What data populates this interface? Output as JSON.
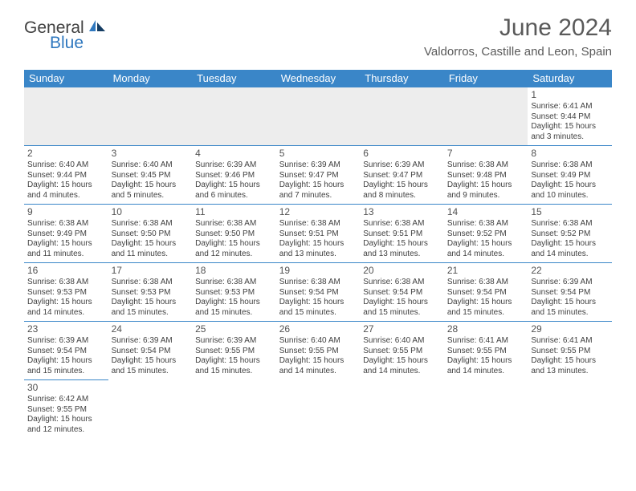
{
  "logo": {
    "text1": "General",
    "text2": "Blue"
  },
  "title": "June 2024",
  "location": "Valdorros, Castille and Leon, Spain",
  "colors": {
    "header_bg": "#3a86c8",
    "header_text": "#ffffff",
    "border": "#3a86c8",
    "blank_bg": "#ededed",
    "text": "#3f3f3f",
    "title_color": "#5a5a5a",
    "logo_blue": "#2f78bf"
  },
  "days_of_week": [
    "Sunday",
    "Monday",
    "Tuesday",
    "Wednesday",
    "Thursday",
    "Friday",
    "Saturday"
  ],
  "weeks": [
    [
      null,
      null,
      null,
      null,
      null,
      null,
      {
        "n": "1",
        "sr": "Sunrise: 6:41 AM",
        "ss": "Sunset: 9:44 PM",
        "d1": "Daylight: 15 hours",
        "d2": "and 3 minutes."
      }
    ],
    [
      {
        "n": "2",
        "sr": "Sunrise: 6:40 AM",
        "ss": "Sunset: 9:44 PM",
        "d1": "Daylight: 15 hours",
        "d2": "and 4 minutes."
      },
      {
        "n": "3",
        "sr": "Sunrise: 6:40 AM",
        "ss": "Sunset: 9:45 PM",
        "d1": "Daylight: 15 hours",
        "d2": "and 5 minutes."
      },
      {
        "n": "4",
        "sr": "Sunrise: 6:39 AM",
        "ss": "Sunset: 9:46 PM",
        "d1": "Daylight: 15 hours",
        "d2": "and 6 minutes."
      },
      {
        "n": "5",
        "sr": "Sunrise: 6:39 AM",
        "ss": "Sunset: 9:47 PM",
        "d1": "Daylight: 15 hours",
        "d2": "and 7 minutes."
      },
      {
        "n": "6",
        "sr": "Sunrise: 6:39 AM",
        "ss": "Sunset: 9:47 PM",
        "d1": "Daylight: 15 hours",
        "d2": "and 8 minutes."
      },
      {
        "n": "7",
        "sr": "Sunrise: 6:38 AM",
        "ss": "Sunset: 9:48 PM",
        "d1": "Daylight: 15 hours",
        "d2": "and 9 minutes."
      },
      {
        "n": "8",
        "sr": "Sunrise: 6:38 AM",
        "ss": "Sunset: 9:49 PM",
        "d1": "Daylight: 15 hours",
        "d2": "and 10 minutes."
      }
    ],
    [
      {
        "n": "9",
        "sr": "Sunrise: 6:38 AM",
        "ss": "Sunset: 9:49 PM",
        "d1": "Daylight: 15 hours",
        "d2": "and 11 minutes."
      },
      {
        "n": "10",
        "sr": "Sunrise: 6:38 AM",
        "ss": "Sunset: 9:50 PM",
        "d1": "Daylight: 15 hours",
        "d2": "and 11 minutes."
      },
      {
        "n": "11",
        "sr": "Sunrise: 6:38 AM",
        "ss": "Sunset: 9:50 PM",
        "d1": "Daylight: 15 hours",
        "d2": "and 12 minutes."
      },
      {
        "n": "12",
        "sr": "Sunrise: 6:38 AM",
        "ss": "Sunset: 9:51 PM",
        "d1": "Daylight: 15 hours",
        "d2": "and 13 minutes."
      },
      {
        "n": "13",
        "sr": "Sunrise: 6:38 AM",
        "ss": "Sunset: 9:51 PM",
        "d1": "Daylight: 15 hours",
        "d2": "and 13 minutes."
      },
      {
        "n": "14",
        "sr": "Sunrise: 6:38 AM",
        "ss": "Sunset: 9:52 PM",
        "d1": "Daylight: 15 hours",
        "d2": "and 14 minutes."
      },
      {
        "n": "15",
        "sr": "Sunrise: 6:38 AM",
        "ss": "Sunset: 9:52 PM",
        "d1": "Daylight: 15 hours",
        "d2": "and 14 minutes."
      }
    ],
    [
      {
        "n": "16",
        "sr": "Sunrise: 6:38 AM",
        "ss": "Sunset: 9:53 PM",
        "d1": "Daylight: 15 hours",
        "d2": "and 14 minutes."
      },
      {
        "n": "17",
        "sr": "Sunrise: 6:38 AM",
        "ss": "Sunset: 9:53 PM",
        "d1": "Daylight: 15 hours",
        "d2": "and 15 minutes."
      },
      {
        "n": "18",
        "sr": "Sunrise: 6:38 AM",
        "ss": "Sunset: 9:53 PM",
        "d1": "Daylight: 15 hours",
        "d2": "and 15 minutes."
      },
      {
        "n": "19",
        "sr": "Sunrise: 6:38 AM",
        "ss": "Sunset: 9:54 PM",
        "d1": "Daylight: 15 hours",
        "d2": "and 15 minutes."
      },
      {
        "n": "20",
        "sr": "Sunrise: 6:38 AM",
        "ss": "Sunset: 9:54 PM",
        "d1": "Daylight: 15 hours",
        "d2": "and 15 minutes."
      },
      {
        "n": "21",
        "sr": "Sunrise: 6:38 AM",
        "ss": "Sunset: 9:54 PM",
        "d1": "Daylight: 15 hours",
        "d2": "and 15 minutes."
      },
      {
        "n": "22",
        "sr": "Sunrise: 6:39 AM",
        "ss": "Sunset: 9:54 PM",
        "d1": "Daylight: 15 hours",
        "d2": "and 15 minutes."
      }
    ],
    [
      {
        "n": "23",
        "sr": "Sunrise: 6:39 AM",
        "ss": "Sunset: 9:54 PM",
        "d1": "Daylight: 15 hours",
        "d2": "and 15 minutes."
      },
      {
        "n": "24",
        "sr": "Sunrise: 6:39 AM",
        "ss": "Sunset: 9:54 PM",
        "d1": "Daylight: 15 hours",
        "d2": "and 15 minutes."
      },
      {
        "n": "25",
        "sr": "Sunrise: 6:39 AM",
        "ss": "Sunset: 9:55 PM",
        "d1": "Daylight: 15 hours",
        "d2": "and 15 minutes."
      },
      {
        "n": "26",
        "sr": "Sunrise: 6:40 AM",
        "ss": "Sunset: 9:55 PM",
        "d1": "Daylight: 15 hours",
        "d2": "and 14 minutes."
      },
      {
        "n": "27",
        "sr": "Sunrise: 6:40 AM",
        "ss": "Sunset: 9:55 PM",
        "d1": "Daylight: 15 hours",
        "d2": "and 14 minutes."
      },
      {
        "n": "28",
        "sr": "Sunrise: 6:41 AM",
        "ss": "Sunset: 9:55 PM",
        "d1": "Daylight: 15 hours",
        "d2": "and 14 minutes."
      },
      {
        "n": "29",
        "sr": "Sunrise: 6:41 AM",
        "ss": "Sunset: 9:55 PM",
        "d1": "Daylight: 15 hours",
        "d2": "and 13 minutes."
      }
    ],
    [
      {
        "n": "30",
        "sr": "Sunrise: 6:42 AM",
        "ss": "Sunset: 9:55 PM",
        "d1": "Daylight: 15 hours",
        "d2": "and 12 minutes."
      },
      null,
      null,
      null,
      null,
      null,
      null
    ]
  ]
}
